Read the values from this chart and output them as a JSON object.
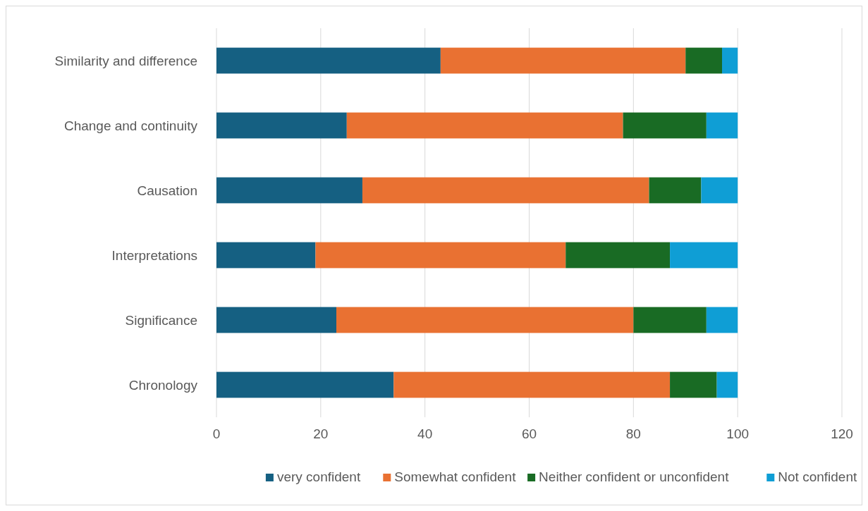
{
  "chart_data": {
    "type": "bar",
    "orientation": "horizontal",
    "stacked": true,
    "categories": [
      "Similarity and difference",
      "Change and continuity",
      "Causation",
      "Interpretations",
      "Significance",
      "Chronology"
    ],
    "series": [
      {
        "name": "very confident",
        "color": "#156082",
        "values": [
          43,
          25,
          28,
          19,
          23,
          34
        ]
      },
      {
        "name": "Somewhat confident",
        "color": "#e97132",
        "values": [
          47,
          53,
          55,
          48,
          57,
          53
        ]
      },
      {
        "name": "Neither confident or unconfident",
        "color": "#196b24",
        "values": [
          7,
          16,
          10,
          20,
          14,
          9
        ]
      },
      {
        "name": "Not confident",
        "color": "#0f9ed5",
        "values": [
          3,
          6,
          7,
          13,
          6,
          4
        ]
      }
    ],
    "xlim": [
      0,
      120
    ],
    "xticks": [
      0,
      20,
      40,
      60,
      80,
      100,
      120
    ],
    "grid": "x",
    "legend": "bottom"
  }
}
